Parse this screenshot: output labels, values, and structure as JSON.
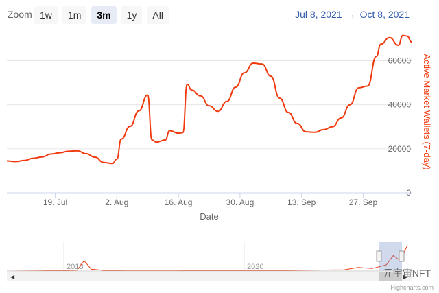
{
  "toolbar": {
    "zoom_label": "Zoom",
    "buttons": [
      {
        "label": "1w",
        "active": false
      },
      {
        "label": "1m",
        "active": false
      },
      {
        "label": "3m",
        "active": true
      },
      {
        "label": "1y",
        "active": false
      },
      {
        "label": "All",
        "active": false
      }
    ],
    "range_from": "Jul 8, 2021",
    "range_arrow": "→",
    "range_to": "Oct 8, 2021"
  },
  "chart_data": {
    "type": "line",
    "title": "",
    "xlabel": "Date",
    "ylabel": "Active Market Wallets (7-day)",
    "ylim": [
      0,
      72000
    ],
    "xlim": [
      "2021-07-08",
      "2021-10-08"
    ],
    "x_ticks": [
      "19. Jul",
      "2. Aug",
      "16. Aug",
      "30. Aug",
      "13. Sep",
      "27. Sep"
    ],
    "y_ticks": [
      "0",
      "20000",
      "40000",
      "60000"
    ],
    "y_tick_values": [
      0,
      20000,
      40000,
      60000
    ],
    "line_color": "#f03a0e",
    "grid": "horizontal",
    "series": [
      {
        "name": "",
        "points": [
          [
            "2021-07-08",
            14500
          ],
          [
            "2021-07-10",
            14200
          ],
          [
            "2021-07-12",
            14700
          ],
          [
            "2021-07-14",
            15700
          ],
          [
            "2021-07-16",
            16300
          ],
          [
            "2021-07-18",
            17600
          ],
          [
            "2021-07-20",
            18200
          ],
          [
            "2021-07-22",
            18900
          ],
          [
            "2021-07-24",
            19100
          ],
          [
            "2021-07-26",
            17800
          ],
          [
            "2021-07-28",
            16200
          ],
          [
            "2021-07-30",
            13800
          ],
          [
            "2021-08-01",
            13300
          ],
          [
            "2021-08-02",
            15300
          ],
          [
            "2021-08-03",
            24400
          ],
          [
            "2021-08-05",
            30200
          ],
          [
            "2021-08-07",
            37200
          ],
          [
            "2021-08-09",
            44400
          ],
          [
            "2021-08-10",
            24000
          ],
          [
            "2021-08-11",
            23000
          ],
          [
            "2021-08-13",
            24000
          ],
          [
            "2021-08-14",
            28200
          ],
          [
            "2021-08-16",
            27100
          ],
          [
            "2021-08-17",
            27300
          ],
          [
            "2021-08-18",
            49300
          ],
          [
            "2021-08-19",
            46700
          ],
          [
            "2021-08-21",
            44000
          ],
          [
            "2021-08-23",
            39500
          ],
          [
            "2021-08-25",
            37000
          ],
          [
            "2021-08-27",
            41500
          ],
          [
            "2021-08-29",
            48000
          ],
          [
            "2021-08-31",
            54500
          ],
          [
            "2021-09-02",
            58900
          ],
          [
            "2021-09-04",
            58500
          ],
          [
            "2021-09-06",
            53000
          ],
          [
            "2021-09-08",
            43000
          ],
          [
            "2021-09-10",
            36500
          ],
          [
            "2021-09-12",
            31500
          ],
          [
            "2021-09-14",
            27700
          ],
          [
            "2021-09-16",
            27500
          ],
          [
            "2021-09-18",
            28700
          ],
          [
            "2021-09-20",
            30000
          ],
          [
            "2021-09-22",
            34000
          ],
          [
            "2021-09-24",
            40000
          ],
          [
            "2021-09-26",
            47700
          ],
          [
            "2021-09-28",
            48500
          ],
          [
            "2021-09-30",
            62000
          ],
          [
            "2021-10-01",
            67500
          ],
          [
            "2021-10-03",
            70500
          ],
          [
            "2021-10-05",
            67000
          ],
          [
            "2021-10-06",
            71500
          ],
          [
            "2021-10-07",
            71200
          ],
          [
            "2021-10-08",
            68500
          ]
        ]
      }
    ],
    "navigator": {
      "labels": [
        "2018",
        "2020"
      ],
      "series": [
        {
          "name": "",
          "points": [
            [
              "2017-01",
              0
            ],
            [
              "2017-06",
              300
            ],
            [
              "2017-11",
              800
            ],
            [
              "2017-12",
              10000
            ],
            [
              "2018-01",
              1800
            ],
            [
              "2018-03",
              500
            ],
            [
              "2018-06",
              300
            ],
            [
              "2019-01",
              300
            ],
            [
              "2019-06",
              600
            ],
            [
              "2020-01",
              400
            ],
            [
              "2020-06",
              700
            ],
            [
              "2021-01",
              1200
            ],
            [
              "2021-03",
              3500
            ],
            [
              "2021-05",
              2500
            ],
            [
              "2021-07",
              6000
            ],
            [
              "2021-08",
              15000
            ],
            [
              "2021-09",
              10000
            ],
            [
              "2021-10",
              25000
            ]
          ]
        }
      ]
    }
  },
  "credit": "Highcharts.com",
  "watermark": "元宇宙NFT"
}
